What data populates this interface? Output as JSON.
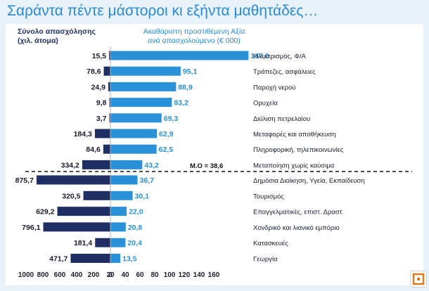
{
  "title": "Σαράντα πέντε μάστοροι κι εξήντα μαθητάδες…",
  "header_left": [
    "Σύνολο απασχόλησης",
    "(χιλ. άτομα)"
  ],
  "header_right": [
    "Ακαθάριστη προστιθέμενη Αξία",
    "ανά απασχολούμενο (€ 000)"
  ],
  "colors": {
    "left": "#1f2f63",
    "right": "#2a90d8",
    "title": "#2a8ad4"
  },
  "chart_data": {
    "type": "bar",
    "subtype": "diverging-horizontal",
    "categories": [
      "Ηλεκτρισμός, Φ/Α",
      "Τράπεζες, ασφάλειες",
      "Παροχή νερού",
      "Ορυχεία",
      "Διύλιση πετρελαίου",
      "Μεταφορές και αποθήκευση",
      "Πληροφορική, τηλεπικοινωνίες",
      "Μεταποίηση χωρίς καύσιμα",
      "Δημόσια Διοίκηση, Υγεία, Εκπαίδευση",
      "Τουρισμός",
      "Επαγγελματικές, επιστ. Δραστ.",
      "Χονδρικό και λιανικό εμπόριο",
      "Κατασκευές",
      "Γεωργία"
    ],
    "series": [
      {
        "name": "Σύνολο απασχόλησης (χιλ. άτομα)",
        "values": [
          15.5,
          78.6,
          24.9,
          9.8,
          3.7,
          184.3,
          84.6,
          334.2,
          875.7,
          320.5,
          629.2,
          796.1,
          181.4,
          471.7
        ],
        "labels": [
          "15,5",
          "78,6",
          "24,9",
          "9,8",
          "3,7",
          "184,3",
          "84,6",
          "334,2",
          "875,7",
          "320,5",
          "629,2",
          "796,1",
          "181,4",
          "471,7"
        ]
      },
      {
        "name": "Ακαθάριστη προστιθέμενη Αξία ανά απασχολούμενο (€ 000)",
        "values": [
          187.0,
          95.1,
          88.9,
          83.2,
          69.3,
          62.9,
          62.5,
          43.2,
          36.7,
          30.1,
          22.0,
          20.8,
          20.4,
          13.5
        ],
        "labels": [
          "187,0",
          "95,1",
          "88,9",
          "83,2",
          "69,3",
          "62,9",
          "62,5",
          "43,2",
          "36,7",
          "30,1",
          "22,0",
          "20,8",
          "20,4",
          "13,5"
        ]
      }
    ],
    "x_ticks": [
      "1000",
      "800",
      "600",
      "400",
      "200",
      "0",
      "20",
      "40",
      "60",
      "80",
      "100",
      "120",
      "140",
      "160"
    ],
    "left_axis_max": 1000,
    "right_axis_max": 160,
    "reference_label": "Μ.Ο = 38,6"
  }
}
